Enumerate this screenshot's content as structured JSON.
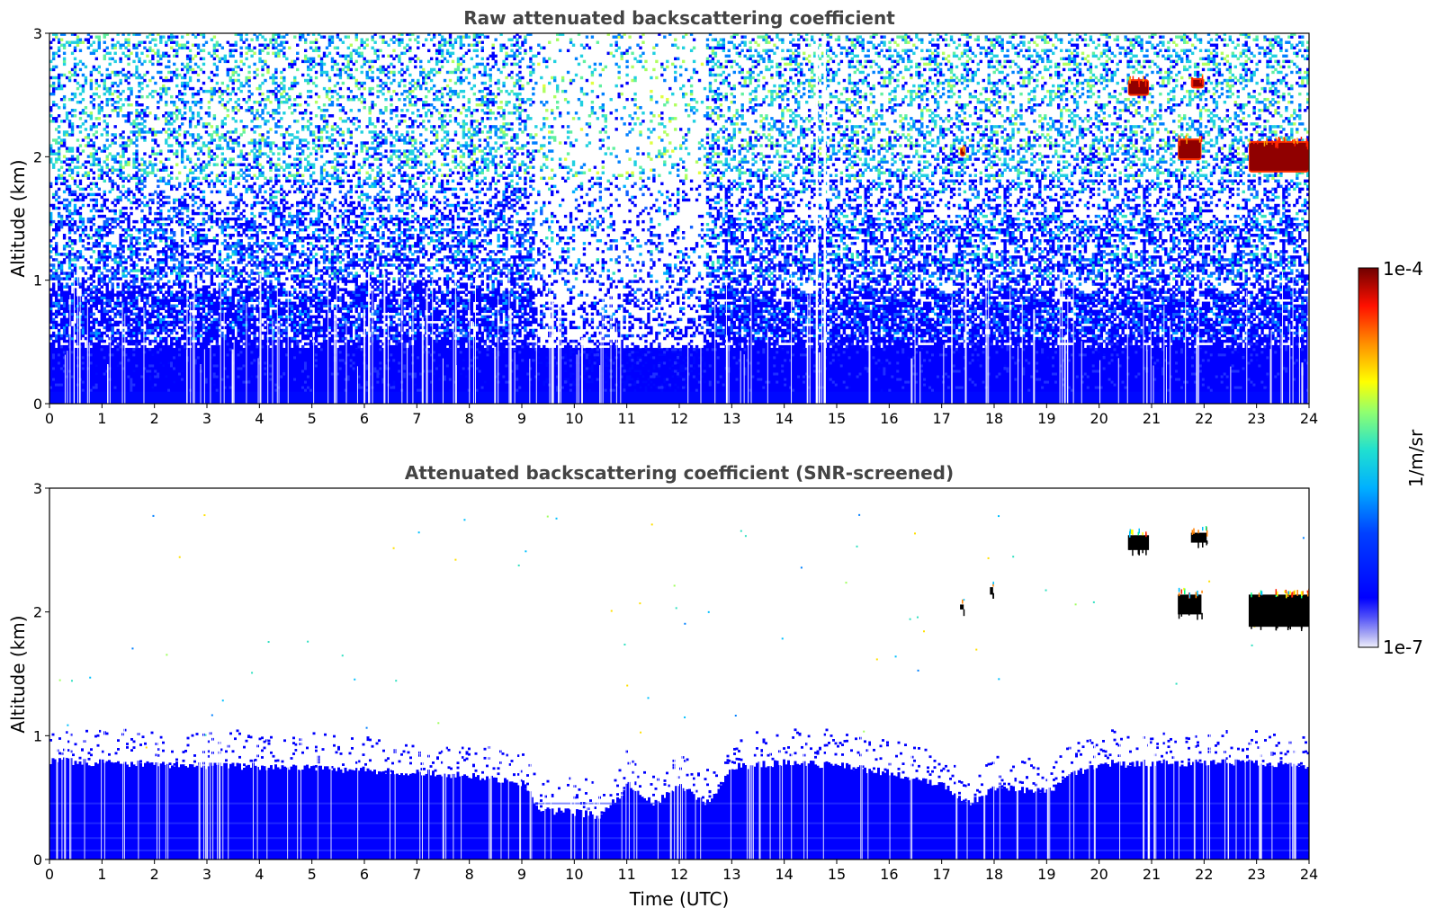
{
  "chart_data": [
    {
      "type": "heatmap",
      "title": "Raw attenuated backscattering coefficient",
      "xlabel": "",
      "ylabel": "Altitude (km)",
      "xlim": [
        0,
        24
      ],
      "ylim": [
        0,
        3
      ],
      "xticks": [
        "0",
        "1",
        "2",
        "3",
        "4",
        "5",
        "6",
        "7",
        "8",
        "9",
        "10",
        "11",
        "12",
        "13",
        "14",
        "15",
        "16",
        "17",
        "18",
        "19",
        "20",
        "21",
        "22",
        "23",
        "24"
      ],
      "yticks": [
        "0",
        "1",
        "2",
        "3"
      ],
      "grid": false,
      "features": [
        {
          "kind": "noise_field",
          "description_level": "blue near surface, cyan/green noise aloft",
          "altitude_km": [
            0,
            3
          ],
          "time_utc": [
            0,
            24
          ]
        },
        {
          "kind": "dense_boundary_layer",
          "altitude_km": [
            0,
            0.45
          ],
          "time_utc": [
            0,
            24
          ]
        },
        {
          "kind": "sparse_region",
          "time_utc": [
            9.2,
            12.5
          ]
        },
        {
          "kind": "cloud",
          "time_utc": [
            20.55,
            20.95
          ],
          "altitude_km": [
            2.5,
            2.62
          ],
          "level": "1e-4"
        },
        {
          "kind": "cloud",
          "time_utc": [
            21.75,
            22.0
          ],
          "altitude_km": [
            2.56,
            2.63
          ],
          "level": "1e-4"
        },
        {
          "kind": "cloud",
          "time_utc": [
            21.5,
            21.95
          ],
          "altitude_km": [
            1.98,
            2.14
          ],
          "level": "1e-4"
        },
        {
          "kind": "cloud",
          "time_utc": [
            22.85,
            24.0
          ],
          "altitude_km": [
            1.88,
            2.12
          ],
          "level": "1e-4"
        },
        {
          "kind": "cloud",
          "time_utc": [
            17.35,
            17.45
          ],
          "altitude_km": [
            2.01,
            2.07
          ],
          "level": "1e-4"
        }
      ]
    },
    {
      "type": "heatmap",
      "title": "Attenuated backscattering coefficient (SNR-screened)",
      "xlabel": "Time (UTC)",
      "ylabel": "Altitude (km)",
      "xlim": [
        0,
        24
      ],
      "ylim": [
        0,
        3
      ],
      "xticks": [
        "0",
        "1",
        "2",
        "3",
        "4",
        "5",
        "6",
        "7",
        "8",
        "9",
        "10",
        "11",
        "12",
        "13",
        "14",
        "15",
        "16",
        "17",
        "18",
        "19",
        "20",
        "21",
        "22",
        "23",
        "24"
      ],
      "yticks": [
        "0",
        "1",
        "2",
        "3"
      ],
      "grid": false,
      "boundary_layer_top_km": {
        "time_utc": [
          0,
          1,
          2,
          3,
          4,
          5,
          6,
          7,
          8,
          9,
          9.3,
          10,
          10.5,
          11,
          11.5,
          12,
          12.5,
          13,
          14,
          15,
          16,
          17,
          17.5,
          18,
          19,
          19.5,
          20,
          21,
          22,
          23,
          24
        ],
        "altitude_km": [
          0.8,
          0.78,
          0.77,
          0.76,
          0.75,
          0.74,
          0.72,
          0.7,
          0.68,
          0.62,
          0.4,
          0.38,
          0.35,
          0.6,
          0.45,
          0.6,
          0.45,
          0.75,
          0.78,
          0.76,
          0.7,
          0.6,
          0.45,
          0.58,
          0.55,
          0.7,
          0.76,
          0.78,
          0.78,
          0.78,
          0.76
        ]
      },
      "features": [
        {
          "kind": "cloud_screened",
          "time_utc": [
            20.55,
            20.95
          ],
          "altitude_km": [
            2.5,
            2.62
          ]
        },
        {
          "kind": "cloud_screened",
          "time_utc": [
            21.75,
            22.05
          ],
          "altitude_km": [
            2.56,
            2.64
          ]
        },
        {
          "kind": "cloud_screened",
          "time_utc": [
            21.5,
            21.95
          ],
          "altitude_km": [
            1.98,
            2.14
          ]
        },
        {
          "kind": "cloud_screened",
          "time_utc": [
            22.85,
            24.0
          ],
          "altitude_km": [
            1.88,
            2.14
          ]
        },
        {
          "kind": "cloud_screened",
          "time_utc": [
            17.35,
            17.42
          ],
          "altitude_km": [
            2.02,
            2.06
          ]
        },
        {
          "kind": "cloud_screened",
          "time_utc": [
            17.92,
            17.98
          ],
          "altitude_km": [
            2.14,
            2.2
          ]
        }
      ]
    }
  ],
  "colorbar": {
    "label": "1/m/sr",
    "max_label": "1e-4",
    "min_label": "1e-7",
    "scale": "log",
    "range": [
      1e-07,
      0.0001
    ],
    "colormap": [
      "#e8e8f8",
      "#9090f0",
      "#0000ff",
      "#0060ff",
      "#00c0ff",
      "#30e0c0",
      "#a0ff60",
      "#ffff00",
      "#ff9000",
      "#ff2000",
      "#a00000",
      "#700000"
    ]
  }
}
